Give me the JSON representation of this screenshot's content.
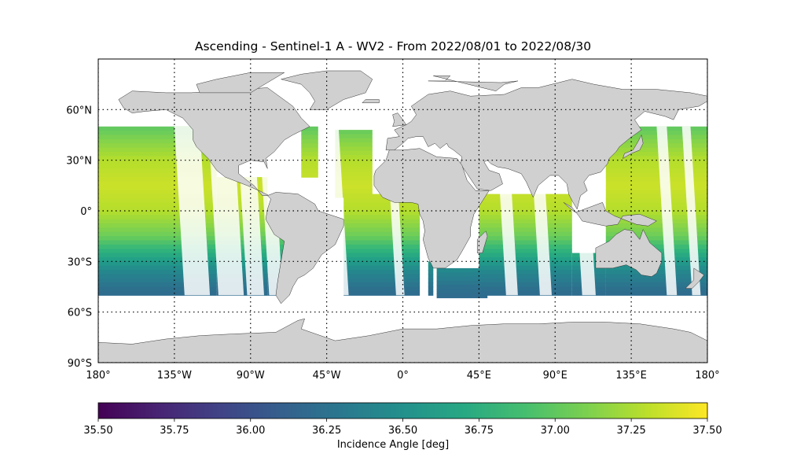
{
  "title": "Ascending - Sentinel-1 A - WV2 - From 2022/08/01 to 2022/08/30",
  "colors": {
    "land": "#d0d0d0",
    "coast": "#333333",
    "grid": "#000000",
    "colormap": "viridis"
  },
  "map": {
    "projection": "plate-carree",
    "lon_range": [
      -180,
      180
    ],
    "lat_range": [
      -90,
      90
    ],
    "lon_ticks": [
      {
        "value": -180,
        "label": "180°"
      },
      {
        "value": -135,
        "label": "135°W"
      },
      {
        "value": -90,
        "label": "90°W"
      },
      {
        "value": -45,
        "label": "45°W"
      },
      {
        "value": 0,
        "label": "0°"
      },
      {
        "value": 45,
        "label": "45°E"
      },
      {
        "value": 90,
        "label": "90°E"
      },
      {
        "value": 135,
        "label": "135°E"
      },
      {
        "value": 180,
        "label": "180°"
      }
    ],
    "lat_ticks": [
      {
        "value": 60,
        "label": "60°N"
      },
      {
        "value": 30,
        "label": "30°N"
      },
      {
        "value": 0,
        "label": "0°"
      },
      {
        "value": -30,
        "label": "30°S"
      },
      {
        "value": -60,
        "label": "60°S"
      },
      {
        "value": -90,
        "label": "90°S"
      }
    ],
    "gridlines": "dotted"
  },
  "chart_data": {
    "type": "heatmap",
    "variable": "Incidence Angle [deg]",
    "coverage_lat": [
      -50,
      50
    ],
    "value_by_latitude": [
      {
        "lat": 50,
        "value": 37.0
      },
      {
        "lat": 40,
        "value": 37.15
      },
      {
        "lat": 30,
        "value": 37.28
      },
      {
        "lat": 15,
        "value": 37.35
      },
      {
        "lat": 0,
        "value": 37.28
      },
      {
        "lat": -15,
        "value": 37.05
      },
      {
        "lat": -25,
        "value": 36.75
      },
      {
        "lat": -35,
        "value": 36.45
      },
      {
        "lat": -45,
        "value": 36.25
      },
      {
        "lat": -50,
        "value": 36.2
      }
    ]
  },
  "colorbar": {
    "min": 35.5,
    "max": 37.5,
    "ticks": [
      "35.50",
      "35.75",
      "36.00",
      "36.25",
      "36.50",
      "36.75",
      "37.00",
      "37.25",
      "37.50"
    ],
    "label": "Incidence Angle [deg]"
  }
}
